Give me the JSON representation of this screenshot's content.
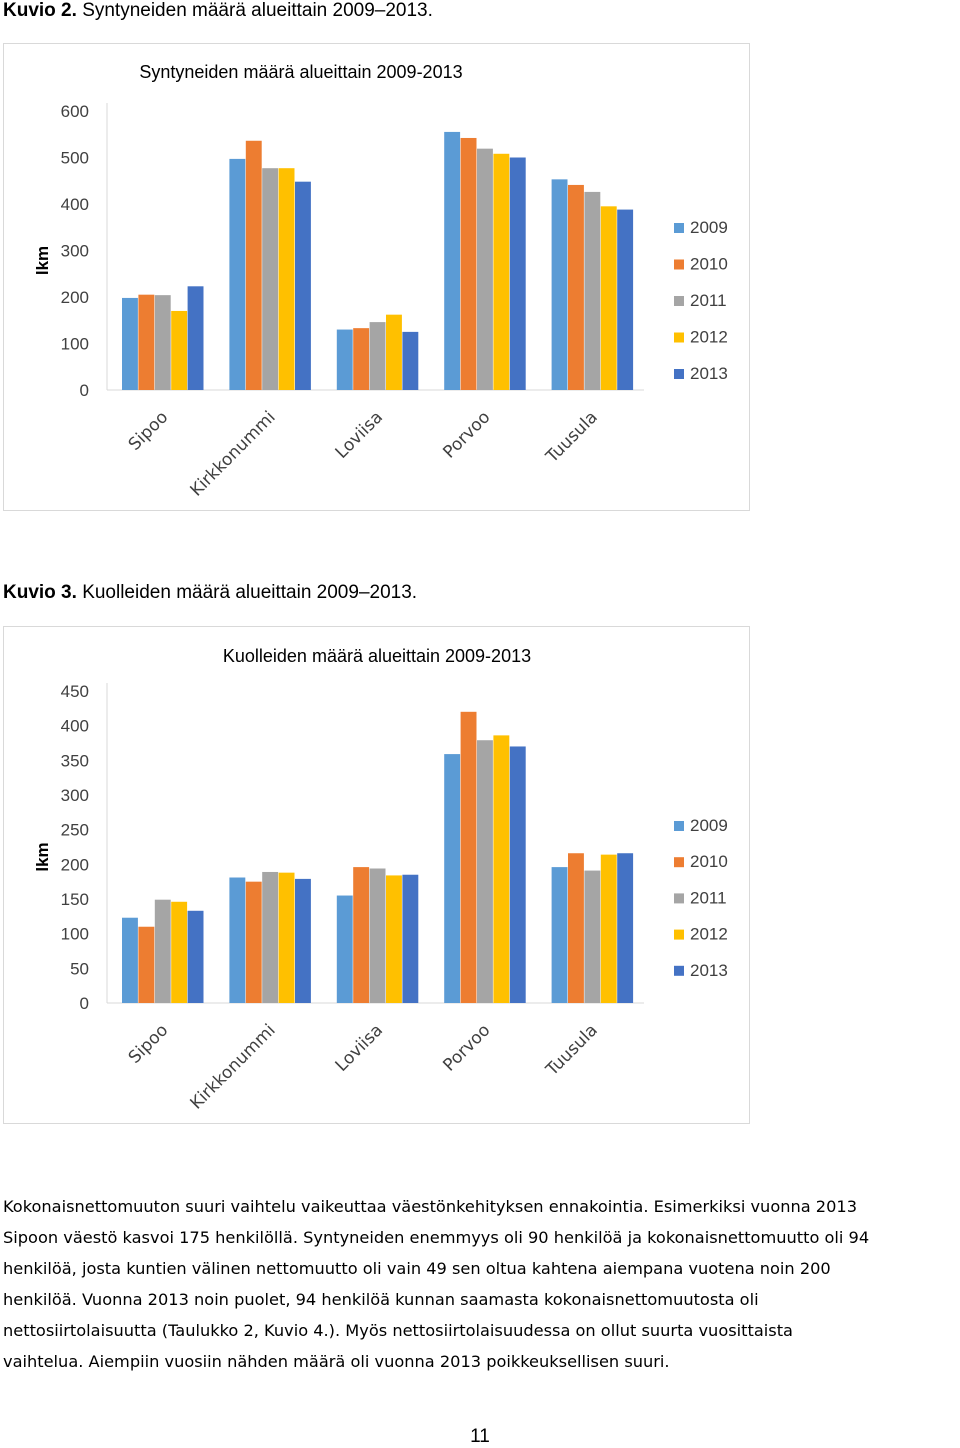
{
  "captions": {
    "figure2": {
      "label": "Kuvio 2.",
      "text": "Syntyneiden määrä alueittain 2009–2013."
    },
    "figure3": {
      "label": "Kuvio 3.",
      "text": "Kuolleiden määrä alueittain 2009–2013."
    }
  },
  "colors": {
    "2009": "#5B9BD5",
    "2010": "#ED7D31",
    "2011": "#A5A5A5",
    "2012": "#FFC000",
    "2013": "#4472C4"
  },
  "chart_data": [
    {
      "type": "bar",
      "title": "Syntyneiden määrä alueittain 2009-2013",
      "ylabel": "lkm",
      "xlabel": "",
      "categories": [
        "Sipoo",
        "Kirkkonummi",
        "Loviisa",
        "Porvoo",
        "Tuusula"
      ],
      "ylim": [
        0,
        600
      ],
      "yticks": [
        "0",
        "100",
        "200",
        "300",
        "400",
        "500",
        "600"
      ],
      "grid": false,
      "legend": "right",
      "series": [
        {
          "name": "2009",
          "values": [
            198,
            497,
            130,
            555,
            453
          ]
        },
        {
          "name": "2010",
          "values": [
            205,
            536,
            133,
            542,
            441
          ]
        },
        {
          "name": "2011",
          "values": [
            204,
            477,
            146,
            519,
            426
          ]
        },
        {
          "name": "2012",
          "values": [
            170,
            477,
            162,
            508,
            395
          ]
        },
        {
          "name": "2013",
          "values": [
            223,
            448,
            125,
            500,
            388
          ]
        }
      ]
    },
    {
      "type": "bar",
      "title": "Kuolleiden määrä alueittain 2009-2013",
      "ylabel": "lkm",
      "xlabel": "",
      "categories": [
        "Sipoo",
        "Kirkkonummi",
        "Loviisa",
        "Porvoo",
        "Tuusula"
      ],
      "ylim": [
        0,
        450
      ],
      "yticks": [
        "0",
        "50",
        "100",
        "150",
        "200",
        "250",
        "300",
        "350",
        "400",
        "450"
      ],
      "grid": false,
      "legend": "right",
      "series": [
        {
          "name": "2009",
          "values": [
            123,
            181,
            155,
            359,
            196
          ]
        },
        {
          "name": "2010",
          "values": [
            110,
            175,
            196,
            420,
            216
          ]
        },
        {
          "name": "2011",
          "values": [
            149,
            189,
            194,
            379,
            191
          ]
        },
        {
          "name": "2012",
          "values": [
            146,
            188,
            184,
            386,
            214
          ]
        },
        {
          "name": "2013",
          "values": [
            133,
            179,
            185,
            370,
            216
          ]
        }
      ]
    }
  ],
  "paragraph": {
    "lines": [
      "Kokonaisnettomuuton suuri vaihtelu vaikeuttaa väestönkehityksen ennakointia. Esimerkiksi vuonna 2013",
      "Sipoon väestö kasvoi 175 henkilöllä. Syntyneiden enemmyys oli 90 henkilöä ja kokonaisnettomuutto oli 94",
      "henkilöä, josta kuntien välinen nettomuutto oli vain 49 sen oltua kahtena aiempana vuotena noin 200",
      "henkilöä. Vuonna 2013 noin puolet, 94 henkilöä kunnan saamasta kokonaisnettomuutosta oli",
      "nettosiirtolaisuutta (Taulukko 2, Kuvio 4.).  Myös nettosiirtolaisuudessa on ollut suurta vuosittaista",
      "vaihtelua. Aiempiin vuosiin nähden määrä oli vuonna 2013 poikkeuksellisen suuri."
    ]
  },
  "page_number": "11"
}
